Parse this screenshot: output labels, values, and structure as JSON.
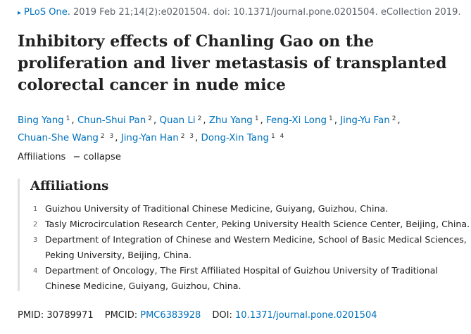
{
  "citation": {
    "journal": "PLoS One.",
    "details": "2019 Feb 21;14(2):e0201504. doi: 10.1371/journal.pone.0201504. eCollection 2019."
  },
  "title": "Inhibitory effects of Chanling Gao on the proliferation and liver metastasis of transplanted colorectal cancer in nude mice",
  "authors": [
    {
      "name": "Bing Yang",
      "aff": "1"
    },
    {
      "name": "Chun-Shui Pan",
      "aff": "2"
    },
    {
      "name": "Quan Li",
      "aff": "2"
    },
    {
      "name": "Zhu Yang",
      "aff": "1"
    },
    {
      "name": "Feng-Xi Long",
      "aff": "1"
    },
    {
      "name": "Jing-Yu Fan",
      "aff": "2"
    },
    {
      "name": "Chuan-She Wang",
      "aff": "2 3"
    },
    {
      "name": "Jing-Yan Han",
      "aff": "2 3"
    },
    {
      "name": "Dong-Xin Tang",
      "aff": "1 4"
    }
  ],
  "affiliations_toggle": {
    "label": "Affiliations",
    "action": "collapse"
  },
  "affiliations": {
    "heading": "Affiliations",
    "items": [
      {
        "num": "1",
        "lines": [
          "Guizhou University of Traditional Chinese Medicine, Guiyang, Guizhou, China."
        ]
      },
      {
        "num": "2",
        "lines": [
          "Tasly Microcirculation Research Center, Peking University Health Science Center, Beijing, China."
        ]
      },
      {
        "num": "3",
        "lines": [
          "Department of Integration of Chinese and Western Medicine, School of Basic Medical Sciences,",
          "Peking University, Beijing, China."
        ]
      },
      {
        "num": "4",
        "lines": [
          "Department of Oncology, The First Affiliated Hospital of Guizhou University of Traditional",
          "Chinese Medicine, Guiyang, Guizhou, China."
        ]
      }
    ]
  },
  "identifiers": {
    "pmid_label": "PMID:",
    "pmid": "30789971",
    "pmcid_label": "PMCID:",
    "pmcid": "PMC6383928",
    "doi_label": "DOI:",
    "doi": "10.1371/journal.pone.0201504"
  }
}
